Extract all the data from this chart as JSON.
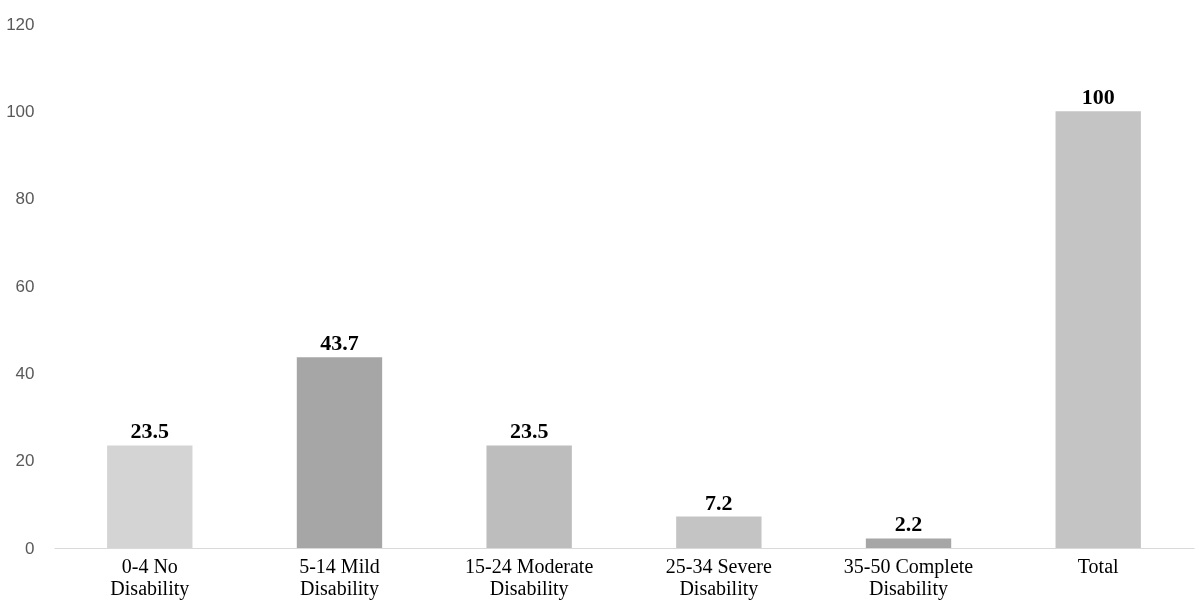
{
  "chart_data": {
    "type": "bar",
    "categories": [
      "0-4 No Disability",
      "5-14 Mild Disability",
      "15-24 Moderate Disability",
      "25-34 Severe Disability",
      "35-50 Complete Disability",
      "Total"
    ],
    "values": [
      23.5,
      43.7,
      23.5,
      7.2,
      2.2,
      100
    ],
    "colors": [
      "#d4d4d4",
      "#a6a6a6",
      "#bdbdbd",
      "#c4c4c4",
      "#a6a6a6",
      "#c4c4c4"
    ],
    "ylim": [
      0,
      120
    ],
    "yticks": [
      0,
      20,
      40,
      60,
      80,
      100,
      120
    ],
    "grid": false,
    "data_labels": true
  }
}
